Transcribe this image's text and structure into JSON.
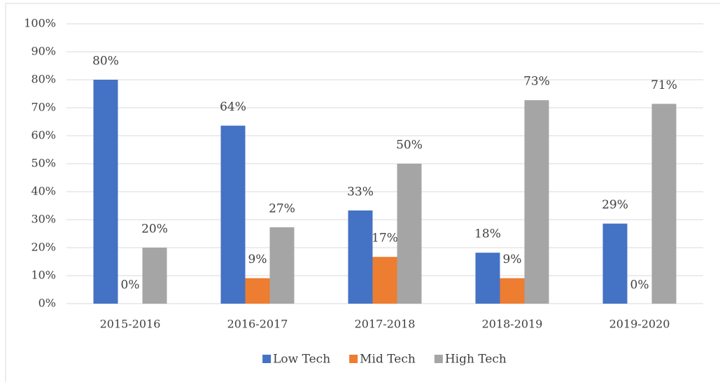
{
  "chart_data": {
    "type": "bar",
    "categories": [
      "2015-2016",
      "2016-2017",
      "2017-2018",
      "2018-2019",
      "2019-2020"
    ],
    "series": [
      {
        "name": "Low Tech",
        "color": "#4472c4",
        "values": [
          80,
          63.6,
          33.3,
          18.2,
          28.6
        ],
        "value_labels": [
          "80%",
          "64%",
          "33%",
          "18%",
          "29%"
        ]
      },
      {
        "name": "Mid Tech",
        "color": "#ed7d31",
        "values": [
          0,
          9.1,
          16.7,
          9.1,
          0
        ],
        "value_labels": [
          "0%",
          "9%",
          "17%",
          "9%",
          "0%"
        ]
      },
      {
        "name": "High Tech",
        "color": "#a5a5a5",
        "values": [
          20,
          27.3,
          50,
          72.7,
          71.4
        ],
        "value_labels": [
          "20%",
          "27%",
          "50%",
          "73%",
          "71%"
        ]
      }
    ],
    "ylim": [
      0,
      100
    ],
    "yticks": [
      {
        "value": 0,
        "label": "0%"
      },
      {
        "value": 10,
        "label": "10%"
      },
      {
        "value": 20,
        "label": "20%"
      },
      {
        "value": 30,
        "label": "30%"
      },
      {
        "value": 40,
        "label": "40%"
      },
      {
        "value": 50,
        "label": "50%"
      },
      {
        "value": 60,
        "label": "60%"
      },
      {
        "value": 70,
        "label": "70%"
      },
      {
        "value": 80,
        "label": "80%"
      },
      {
        "value": 90,
        "label": "90%"
      },
      {
        "value": 100,
        "label": "100%"
      }
    ],
    "grid": true,
    "legend": "bottom"
  }
}
